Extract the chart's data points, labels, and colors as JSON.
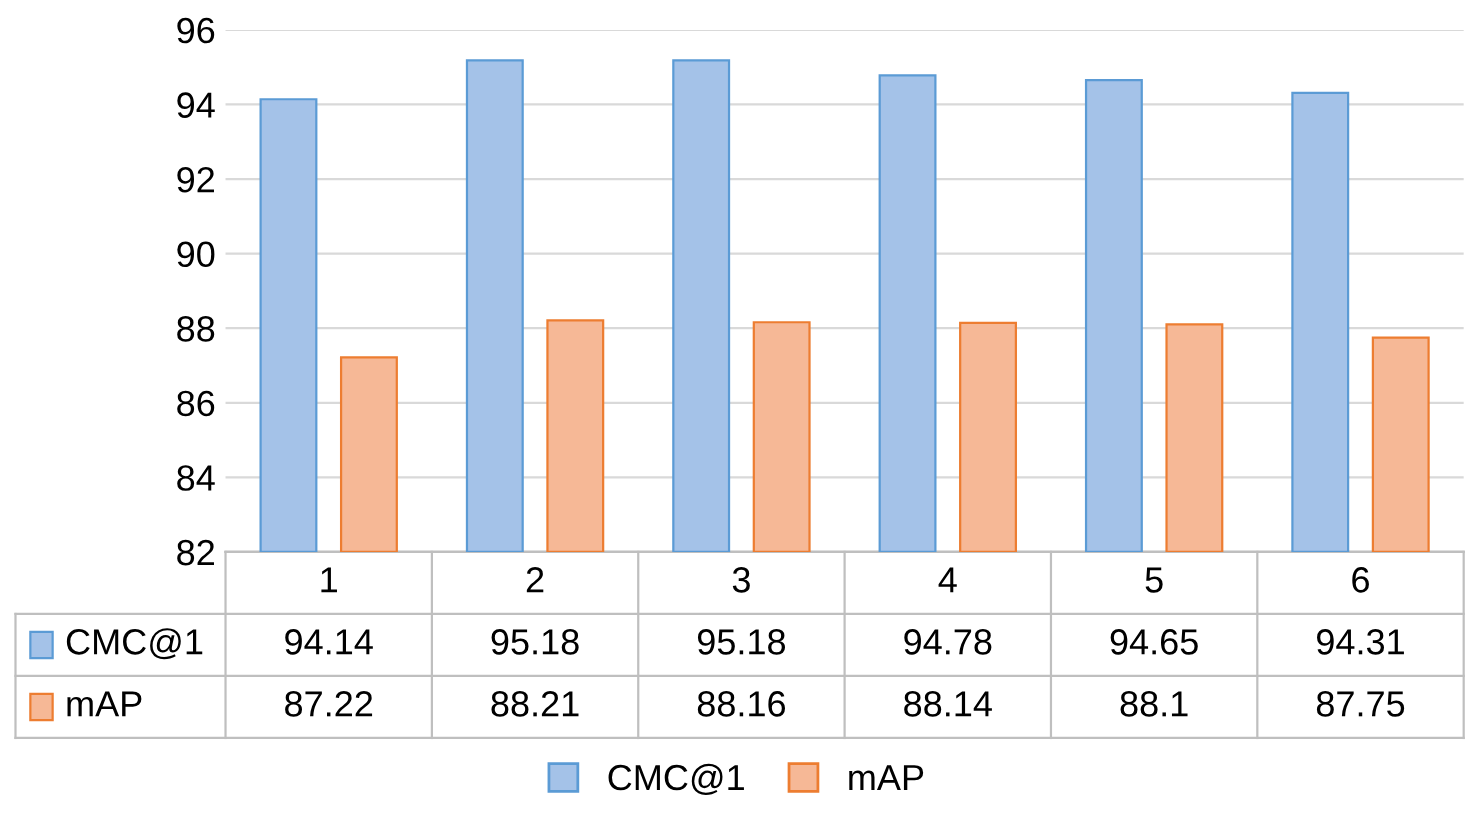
{
  "chart_data": {
    "type": "bar",
    "categories": [
      "1",
      "2",
      "3",
      "4",
      "5",
      "6"
    ],
    "series": [
      {
        "name": "CMC@1",
        "color": "#a4c2e8",
        "values": [
          94.14,
          95.18,
          95.18,
          94.78,
          94.65,
          94.31
        ]
      },
      {
        "name": "mAP",
        "color": "#f6b896",
        "values": [
          87.22,
          88.21,
          88.16,
          88.14,
          88.1,
          87.75
        ]
      }
    ],
    "ylim": [
      82,
      96
    ],
    "yticks": [
      82,
      84,
      86,
      88,
      90,
      92,
      94,
      96
    ],
    "grid": "y",
    "data_labels": true,
    "legend": "bottom"
  }
}
